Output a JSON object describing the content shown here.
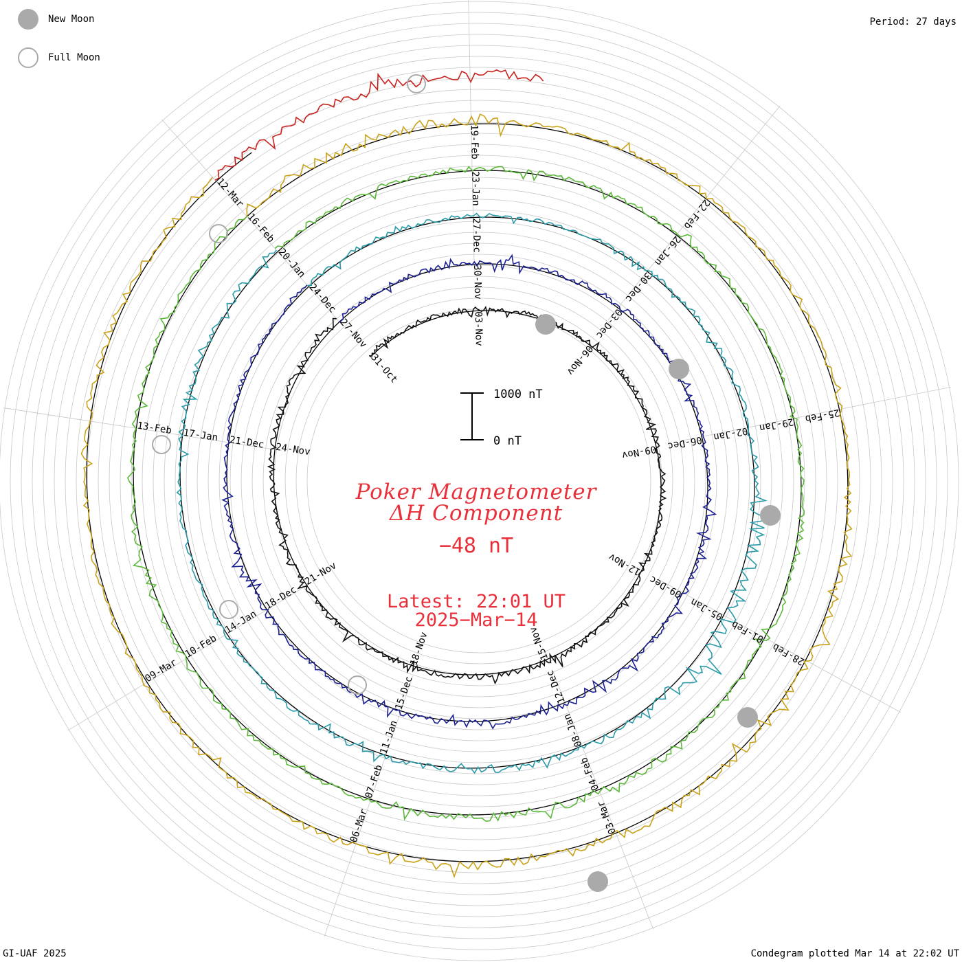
{
  "legend": {
    "new_moon_label": "New Moon",
    "full_moon_label": "Full Moon"
  },
  "period_label": "Period: 27 days",
  "footer_left": "GI-UAF 2025",
  "footer_right": "Condegram plotted Mar 14 at 22:02 UT",
  "title_line1": "Poker Magnetometer",
  "title_line2": "ΔH Component",
  "current_value": "−48 nT",
  "latest_time": "Latest: 22:01 UT",
  "latest_date": "2025−Mar−14",
  "scale_bar": {
    "top_label": "1000 nT",
    "bottom_label": "0 nT"
  },
  "colors": {
    "title": "#e8303a",
    "moon": "#aaaaaa",
    "grid": "#c8c8c8",
    "baseline": "#000000"
  },
  "chart_data": {
    "type": "line",
    "title": "Poker Magnetometer ΔH Component",
    "chart_form": "condegram spiral",
    "period_days": 27,
    "ylabel": "ΔH",
    "scale_nT": [
      0,
      1000
    ],
    "series": [
      {
        "color": "#111111",
        "date_labels": [
          "31-Oct",
          "03-Nov",
          "06-Nov",
          "09-Nov",
          "12-Nov",
          "15-Nov",
          "18-Nov",
          "21-Nov",
          "24-Nov"
        ],
        "values": [
          120,
          110,
          140,
          90,
          160,
          130,
          100,
          150
        ]
      },
      {
        "color": "#1a1f8f",
        "date_labels": [
          "27-Nov",
          "30-Nov",
          "03-Dec",
          "06-Dec",
          "09-Dec",
          "12-Dec",
          "15-Dec",
          "18-Dec",
          "21-Dec"
        ],
        "values": [
          100,
          130,
          90,
          120,
          150,
          110,
          140,
          100
        ]
      },
      {
        "color": "#2a9aa8",
        "date_labels": [
          "24-Dec",
          "27-Dec",
          "30-Dec",
          "02-Jan",
          "05-Jan",
          "08-Jan",
          "11-Jan",
          "14-Jan",
          "17-Jan"
        ],
        "values": [
          110,
          90,
          130,
          400,
          160,
          120,
          100,
          140
        ]
      },
      {
        "color": "#5cb83a",
        "date_labels": [
          "20-Jan",
          "23-Jan",
          "26-Jan",
          "29-Jan",
          "01-Feb",
          "04-Feb",
          "07-Feb",
          "10-Feb",
          "13-Feb"
        ],
        "values": [
          130,
          110,
          90,
          150,
          200,
          130,
          160,
          120
        ]
      },
      {
        "color": "#c9a21a",
        "date_labels": [
          "16-Feb",
          "19-Feb",
          "22-Feb",
          "25-Feb",
          "28-Feb",
          "03-Mar",
          "06-Mar",
          "09-Mar"
        ],
        "values": [
          250,
          120,
          100,
          180,
          210,
          150,
          120,
          170
        ]
      },
      {
        "color": "#c8201c",
        "date_labels": [
          "12-Mar"
        ],
        "values": [
          180,
          200
        ]
      }
    ],
    "new_moon_dates": [
      "01-Nov",
      "30-Nov",
      "30-Dec",
      "29-Jan",
      "28-Feb"
    ],
    "full_moon_dates": [
      "15-Nov",
      "15-Dec",
      "14-Jan",
      "13-Feb",
      "14-Mar"
    ],
    "grid": true,
    "legend_position": "top-left"
  }
}
